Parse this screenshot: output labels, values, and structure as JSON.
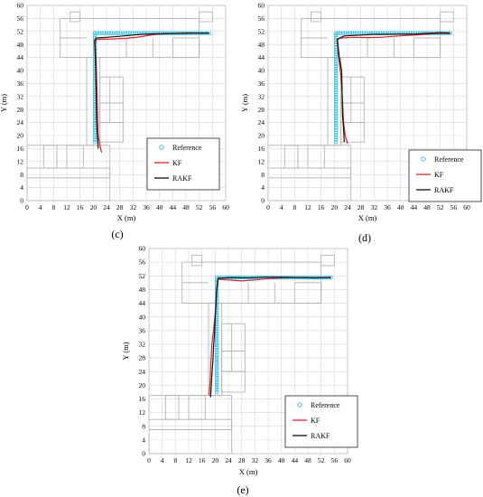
{
  "colors": {
    "reference": "#39c4e8",
    "kf": "#e0202a",
    "rakf": "#111111",
    "grid": "#d9d9d9",
    "floorplan": "#b4b4b4"
  },
  "chart_data": [
    {
      "type": "line",
      "panel_label": "(c)",
      "xlabel": "X (m)",
      "ylabel": "Y (m)",
      "xlim": [
        0,
        60
      ],
      "ylim": [
        0,
        60
      ],
      "x_ticks": [
        0,
        4,
        8,
        12,
        16,
        20,
        24,
        28,
        32,
        36,
        40,
        44,
        48,
        52,
        56,
        60
      ],
      "y_ticks": [
        0,
        4,
        8,
        12,
        16,
        20,
        24,
        28,
        32,
        36,
        40,
        44,
        48,
        52,
        56,
        60
      ],
      "grid": true,
      "legend_position": "bottom-right",
      "series": [
        {
          "name": "Reference",
          "style": "circles",
          "points": [
            [
              20.5,
              18
            ],
            [
              20.5,
              51.5
            ],
            [
              55,
              51.5
            ]
          ]
        },
        {
          "name": "KF",
          "style": "line",
          "points": [
            [
              22.5,
              14.8
            ],
            [
              22.0,
              17
            ],
            [
              21.5,
              20
            ],
            [
              21.3,
              26
            ],
            [
              21.2,
              32
            ],
            [
              21.0,
              38
            ],
            [
              20.8,
              44
            ],
            [
              20.6,
              48
            ],
            [
              20.8,
              49.5
            ],
            [
              22,
              49.6
            ],
            [
              26,
              49.7
            ],
            [
              30,
              49.9
            ],
            [
              34,
              50.3
            ],
            [
              38,
              51.0
            ],
            [
              42,
              51.3
            ],
            [
              46,
              51.4
            ],
            [
              50,
              51.5
            ],
            [
              55,
              51.5
            ]
          ]
        },
        {
          "name": "RAKF",
          "style": "line",
          "points": [
            [
              21.5,
              16
            ],
            [
              21.3,
              19
            ],
            [
              21.0,
              24
            ],
            [
              20.9,
              30
            ],
            [
              20.8,
              36
            ],
            [
              20.7,
              42
            ],
            [
              20.5,
              47
            ],
            [
              20.4,
              49.2
            ],
            [
              20.9,
              50.0
            ],
            [
              24,
              50.2
            ],
            [
              28,
              50.5
            ],
            [
              32,
              50.9
            ],
            [
              36,
              51.2
            ],
            [
              40,
              51.3
            ],
            [
              45,
              51.4
            ],
            [
              50,
              51.5
            ],
            [
              55,
              51.5
            ]
          ]
        }
      ]
    },
    {
      "type": "line",
      "panel_label": "(d)",
      "xlabel": "X (m)",
      "ylabel": "Y (m)",
      "xlim": [
        0,
        60
      ],
      "ylim": [
        0,
        60
      ],
      "x_ticks": [
        0,
        4,
        8,
        12,
        16,
        20,
        24,
        28,
        32,
        36,
        40,
        44,
        48,
        52,
        56,
        60
      ],
      "y_ticks": [
        0,
        4,
        8,
        12,
        16,
        20,
        24,
        28,
        32,
        36,
        40,
        44,
        48,
        52,
        56,
        60
      ],
      "grid": true,
      "legend_position": "bottom-right",
      "series": [
        {
          "name": "Reference",
          "style": "circles",
          "points": [
            [
              20.5,
              18
            ],
            [
              20.5,
              51.5
            ],
            [
              55,
              51.5
            ]
          ]
        },
        {
          "name": "KF",
          "style": "line",
          "points": [
            [
              24.0,
              17.5
            ],
            [
              23.3,
              20
            ],
            [
              22.8,
              24
            ],
            [
              22.6,
              28
            ],
            [
              22.3,
              34
            ],
            [
              21.8,
              40
            ],
            [
              21.3,
              44
            ],
            [
              21.0,
              47
            ],
            [
              20.8,
              49.5
            ],
            [
              22,
              50.0
            ],
            [
              26,
              50.2
            ],
            [
              30,
              50.1
            ],
            [
              34,
              50.2
            ],
            [
              38,
              50.5
            ],
            [
              42,
              50.8
            ],
            [
              46,
              51.0
            ],
            [
              50,
              51.3
            ],
            [
              55,
              51.4
            ]
          ]
        },
        {
          "name": "RAKF",
          "style": "line",
          "points": [
            [
              23.0,
              18.0
            ],
            [
              22.8,
              22
            ],
            [
              22.5,
              26
            ],
            [
              22.4,
              30
            ],
            [
              22.3,
              36
            ],
            [
              22.2,
              40
            ],
            [
              21.5,
              44
            ],
            [
              21.2,
              47
            ],
            [
              20.9,
              49.6
            ],
            [
              23,
              50.6
            ],
            [
              28,
              50.9
            ],
            [
              32,
              51.1
            ],
            [
              36,
              51.1
            ],
            [
              40,
              51.2
            ],
            [
              44,
              51.2
            ],
            [
              48,
              51.4
            ],
            [
              52,
              51.6
            ],
            [
              55,
              51.5
            ]
          ]
        }
      ]
    },
    {
      "type": "line",
      "panel_label": "(e)",
      "xlabel": "X (m)",
      "ylabel": "Y (m)",
      "xlim": [
        0,
        60
      ],
      "ylim": [
        0,
        60
      ],
      "x_ticks": [
        0,
        4,
        8,
        12,
        16,
        20,
        24,
        28,
        32,
        36,
        40,
        44,
        48,
        52,
        56,
        60
      ],
      "y_ticks": [
        0,
        4,
        8,
        12,
        16,
        20,
        24,
        28,
        32,
        36,
        40,
        44,
        48,
        52,
        56,
        60
      ],
      "grid": true,
      "legend_position": "bottom-right",
      "series": [
        {
          "name": "Reference",
          "style": "circles",
          "points": [
            [
              20.5,
              18
            ],
            [
              20.5,
              51.5
            ],
            [
              55,
              51.5
            ]
          ]
        },
        {
          "name": "KF",
          "style": "line",
          "points": [
            [
              18.2,
              17.0
            ],
            [
              18.4,
              20
            ],
            [
              18.6,
              24
            ],
            [
              18.8,
              28
            ],
            [
              19.0,
              32
            ],
            [
              19.5,
              36
            ],
            [
              19.9,
              40
            ],
            [
              20.2,
              44
            ],
            [
              20.4,
              48
            ],
            [
              20.8,
              51.0
            ],
            [
              24,
              50.8
            ],
            [
              28,
              50.5
            ],
            [
              32,
              50.8
            ],
            [
              36,
              51.2
            ],
            [
              40,
              51.4
            ],
            [
              45,
              51.5
            ],
            [
              50,
              51.4
            ],
            [
              55,
              51.5
            ]
          ]
        },
        {
          "name": "RAKF",
          "style": "line",
          "points": [
            [
              18.6,
              16.5
            ],
            [
              18.8,
              19
            ],
            [
              19.0,
              23
            ],
            [
              19.3,
              27
            ],
            [
              19.5,
              31
            ],
            [
              19.8,
              35
            ],
            [
              20.0,
              39
            ],
            [
              20.2,
              43
            ],
            [
              20.4,
              47
            ],
            [
              20.9,
              51.3
            ],
            [
              25,
              51.5
            ],
            [
              30,
              51.4
            ],
            [
              35,
              51.6
            ],
            [
              40,
              51.6
            ],
            [
              45,
              51.5
            ],
            [
              50,
              51.4
            ],
            [
              55,
              51.5
            ]
          ]
        }
      ]
    }
  ]
}
